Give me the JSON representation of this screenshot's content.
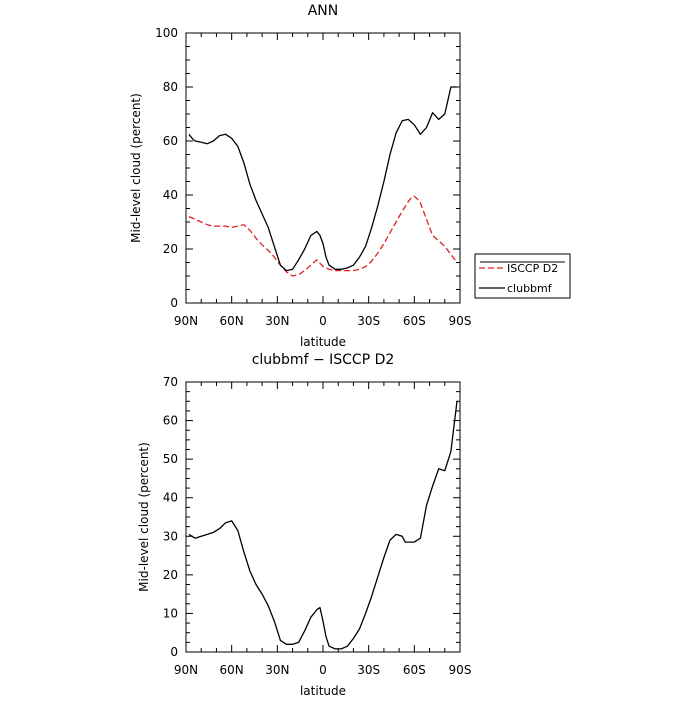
{
  "chart_data": [
    {
      "type": "line",
      "title": "ANN",
      "xlabel": "latitude",
      "ylabel": "Mid-level cloud (percent)",
      "xlim": [
        90,
        -90
      ],
      "ylim": [
        0,
        100
      ],
      "x_ticks": [
        {
          "value": 90,
          "label": "90N"
        },
        {
          "value": 60,
          "label": "60N"
        },
        {
          "value": 30,
          "label": "30N"
        },
        {
          "value": 0,
          "label": "0"
        },
        {
          "value": -30,
          "label": "30S"
        },
        {
          "value": -60,
          "label": "60S"
        },
        {
          "value": -90,
          "label": "90S"
        }
      ],
      "y_ticks": [
        0,
        20,
        40,
        60,
        80,
        100
      ],
      "legend": {
        "placement": "right"
      },
      "series": [
        {
          "name": "ISCCP D2",
          "color": "#e02020",
          "dash": "dashed",
          "x": [
            88,
            84,
            80,
            76,
            72,
            68,
            64,
            60,
            56,
            52,
            48,
            44,
            40,
            36,
            32,
            28,
            24,
            20,
            16,
            12,
            8,
            4,
            0,
            -4,
            -8,
            -12,
            -16,
            -20,
            -24,
            -28,
            -32,
            -36,
            -40,
            -44,
            -48,
            -52,
            -56,
            -58,
            -60,
            -62,
            -64,
            -68,
            -72,
            -76,
            -80,
            -84,
            -88
          ],
          "values": [
            32,
            31,
            30,
            29,
            28.5,
            28.5,
            28.5,
            28,
            28.5,
            29,
            27,
            24,
            21.5,
            19.5,
            17,
            14,
            11.5,
            10,
            10.5,
            12,
            14,
            16,
            13.5,
            12.5,
            12,
            12,
            12,
            12,
            12.5,
            13.5,
            15.5,
            18.5,
            22,
            26,
            30,
            34,
            37.5,
            39,
            39.5,
            38.5,
            37,
            31,
            25,
            23,
            21,
            18,
            15
          ]
        },
        {
          "name": "clubbmf",
          "color": "#000000",
          "dash": "solid",
          "x": [
            88,
            86,
            84,
            80,
            76,
            72,
            68,
            64,
            60,
            56,
            52,
            48,
            44,
            40,
            36,
            32,
            28,
            24,
            20,
            16,
            12,
            8,
            4,
            2,
            0,
            -2,
            -4,
            -8,
            -12,
            -16,
            -20,
            -24,
            -28,
            -32,
            -36,
            -40,
            -44,
            -48,
            -52,
            -56,
            -60,
            -64,
            -68,
            -72,
            -76,
            -80,
            -84,
            -88
          ],
          "values": [
            62.5,
            61,
            60,
            59.5,
            59,
            60,
            62,
            62.5,
            61,
            58,
            52,
            44,
            38,
            33,
            28,
            21,
            14,
            12,
            12.5,
            16,
            20,
            25,
            26.5,
            25,
            22,
            17,
            14,
            12.5,
            12.5,
            13,
            14,
            17,
            21,
            28,
            36,
            45,
            55,
            63,
            67.5,
            68,
            66,
            62.5,
            65,
            70.5,
            68,
            70,
            80,
            80
          ]
        }
      ]
    },
    {
      "type": "line",
      "title": "clubbmf − ISCCP D2",
      "xlabel": "latitude",
      "ylabel": "Mid-level cloud (percent)",
      "xlim": [
        90,
        -90
      ],
      "ylim": [
        0,
        70
      ],
      "x_ticks": [
        {
          "value": 90,
          "label": "90N"
        },
        {
          "value": 60,
          "label": "60N"
        },
        {
          "value": 30,
          "label": "30N"
        },
        {
          "value": 0,
          "label": "0"
        },
        {
          "value": -30,
          "label": "30S"
        },
        {
          "value": -60,
          "label": "60S"
        },
        {
          "value": -90,
          "label": "90S"
        }
      ],
      "y_ticks": [
        0,
        10,
        20,
        30,
        40,
        50,
        60,
        70
      ],
      "series": [
        {
          "color": "#000000",
          "dash": "solid",
          "x": [
            88,
            84,
            80,
            76,
            72,
            68,
            64,
            60,
            56,
            52,
            48,
            44,
            40,
            36,
            32,
            28,
            24,
            20,
            16,
            12,
            8,
            4,
            2,
            0,
            -2,
            -4,
            -8,
            -12,
            -16,
            -20,
            -24,
            -28,
            -32,
            -36,
            -40,
            -44,
            -48,
            -52,
            -54,
            -56,
            -60,
            -64,
            -68,
            -72,
            -76,
            -80,
            -84,
            -88
          ],
          "values": [
            30.5,
            29.5,
            30,
            30.5,
            31,
            32,
            33.5,
            34,
            31.5,
            26,
            21,
            17.5,
            15,
            12,
            8,
            3,
            2,
            2,
            2.5,
            5.5,
            9,
            11,
            11.5,
            8,
            4,
            1.5,
            0.8,
            0.8,
            1.5,
            3.5,
            6,
            10,
            14.5,
            19.5,
            24.5,
            29,
            30.5,
            30,
            28.5,
            28.5,
            28.5,
            29.5,
            38,
            43,
            47.5,
            47,
            52,
            65
          ]
        }
      ]
    }
  ]
}
